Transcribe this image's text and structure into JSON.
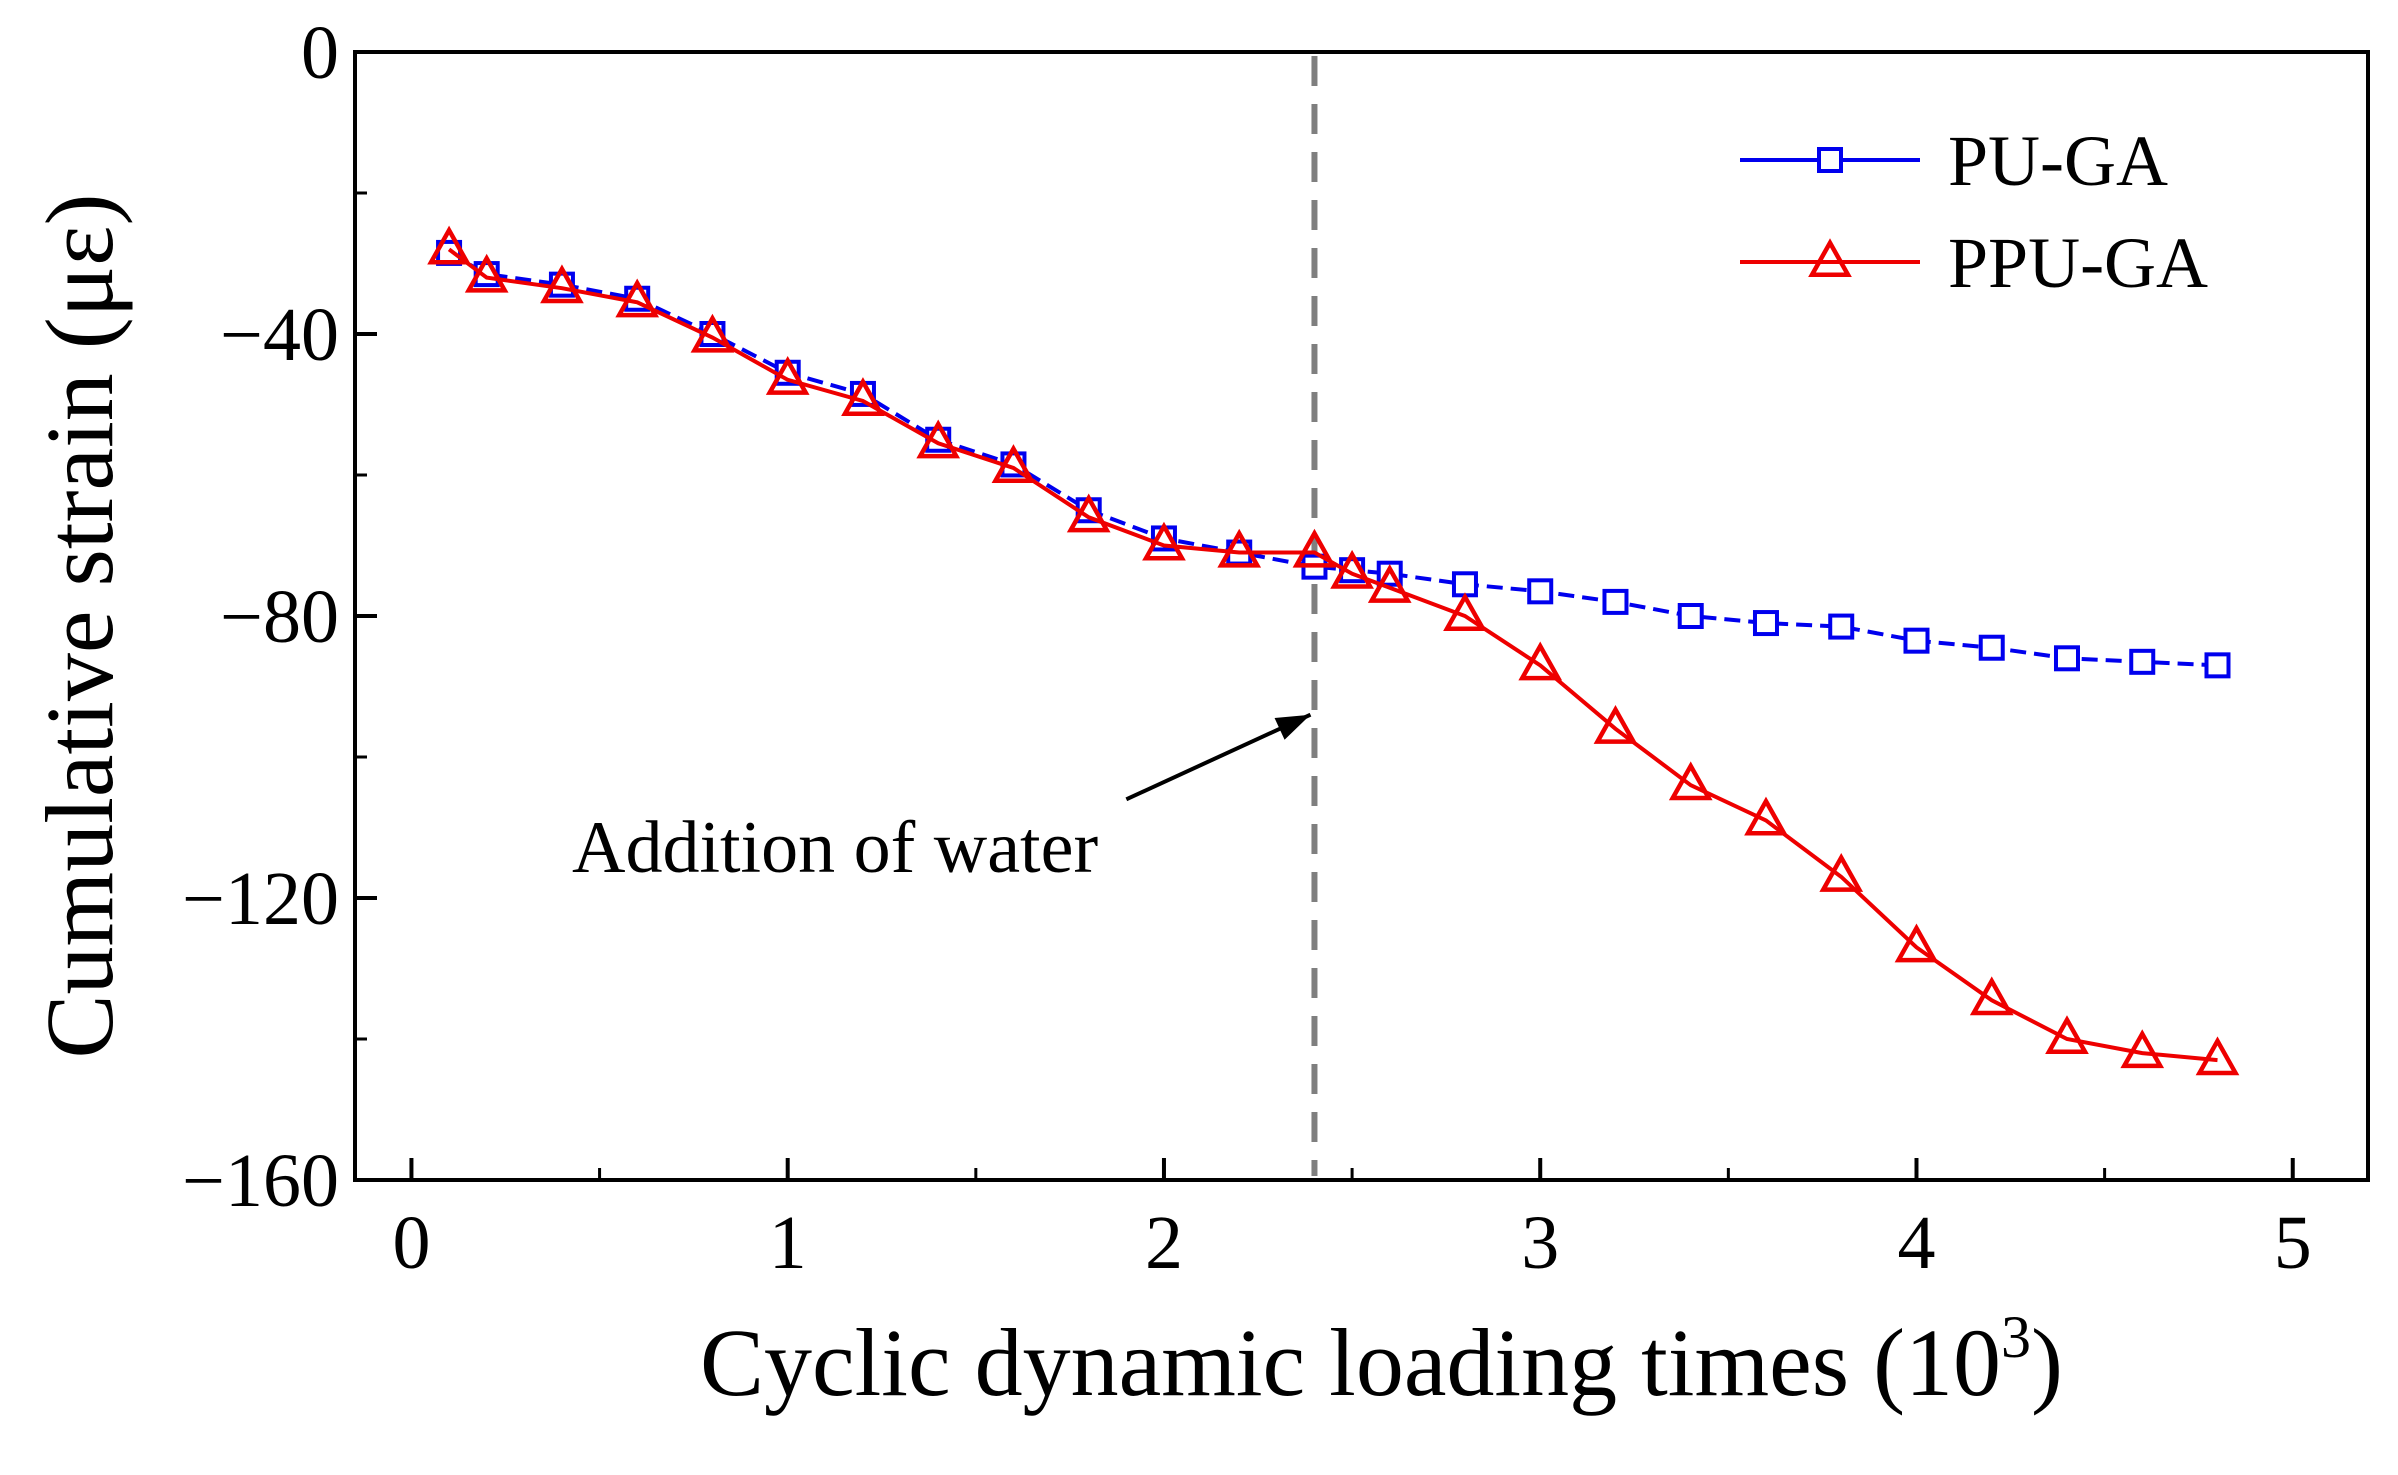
{
  "chart_data": {
    "type": "line",
    "title": "",
    "xlabel": "Cyclic dynamic loading times (10",
    "xlabel_superscript": "3",
    "xlabel_close": ")",
    "ylabel": "Cumulative strain (με)",
    "xlim": [
      -0.15,
      5.2
    ],
    "ylim": [
      -160,
      0
    ],
    "xticks": [
      0,
      1,
      2,
      3,
      4,
      5
    ],
    "xtick_labels": [
      "0",
      "1",
      "2",
      "3",
      "4",
      "5"
    ],
    "yticks": [
      0,
      -40,
      -80,
      -120,
      -160
    ],
    "ytick_labels": [
      "0",
      "−40",
      "−80",
      "−120",
      "−160"
    ],
    "x": [
      0.1,
      0.2,
      0.4,
      0.6,
      0.8,
      1.0,
      1.2,
      1.4,
      1.6,
      1.8,
      2.0,
      2.2,
      2.4,
      2.5,
      2.6,
      2.8,
      3.0,
      3.2,
      3.4,
      3.6,
      3.8,
      4.0,
      4.2,
      4.4,
      4.6,
      4.8
    ],
    "series": [
      {
        "name": "PU-GA",
        "color": "#0000ee",
        "marker": "square",
        "values": [
          -28.5,
          -31.5,
          -33,
          -35,
          -40,
          -45.5,
          -48.5,
          -55,
          -58.5,
          -65,
          -69,
          -71,
          -73,
          -73.5,
          -74,
          -75.5,
          -76.5,
          -78,
          -80,
          -81,
          -81.5,
          -83.5,
          -84.5,
          -86,
          -86.5,
          -87
        ]
      },
      {
        "name": "PPU-GA",
        "color": "#ee0000",
        "marker": "triangle",
        "values": [
          -28,
          -32,
          -33.5,
          -35.5,
          -40.5,
          -46.5,
          -49.5,
          -55.5,
          -59,
          -66,
          -70,
          -71,
          -71,
          -74,
          -76,
          -80,
          -87,
          -96,
          -104,
          -109,
          -117,
          -127,
          -134.5,
          -140,
          -142,
          -143
        ]
      }
    ],
    "vline": {
      "x": 2.4,
      "color": "#7f7f7f"
    },
    "annotation": {
      "text": "Addition of water",
      "arrow_target": [
        2.4,
        -94
      ],
      "arrow_from": [
        1.9,
        -106
      ]
    },
    "legend_position": "top-right",
    "grid": false
  }
}
